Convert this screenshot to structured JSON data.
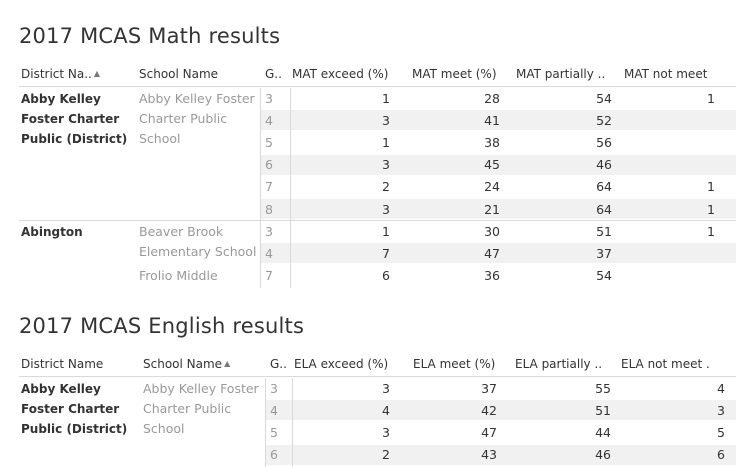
{
  "math": {
    "title": "2017 MCAS Math results",
    "headers": {
      "district": "District Na..",
      "school": "School Name",
      "grade": "G..",
      "exceed": "MAT exceed (%)",
      "meet": "MAT meet (%)",
      "partially": "MAT partially ..",
      "not_meet": "MAT not meet"
    },
    "groups": [
      {
        "district": [
          "Abby Kelley",
          "Foster Charter",
          "Public (District)"
        ],
        "school": [
          "Abby Kelley Foster",
          "Charter Public",
          "School"
        ]
      },
      {
        "district": [
          "Abington"
        ],
        "school": [
          "Beaver Brook",
          "Elementary School"
        ]
      },
      {
        "district": [],
        "school": [
          "Frolio Middle"
        ]
      }
    ],
    "rows": [
      {
        "grade": "3",
        "exceed": "1",
        "meet": "28",
        "partially": "54",
        "not_meet": "1"
      },
      {
        "grade": "4",
        "exceed": "3",
        "meet": "41",
        "partially": "52",
        "not_meet": ""
      },
      {
        "grade": "5",
        "exceed": "1",
        "meet": "38",
        "partially": "56",
        "not_meet": ""
      },
      {
        "grade": "6",
        "exceed": "3",
        "meet": "45",
        "partially": "46",
        "not_meet": ""
      },
      {
        "grade": "7",
        "exceed": "2",
        "meet": "24",
        "partially": "64",
        "not_meet": "1"
      },
      {
        "grade": "8",
        "exceed": "3",
        "meet": "21",
        "partially": "64",
        "not_meet": "1"
      },
      {
        "grade": "3",
        "exceed": "1",
        "meet": "30",
        "partially": "51",
        "not_meet": "1"
      },
      {
        "grade": "4",
        "exceed": "7",
        "meet": "47",
        "partially": "37",
        "not_meet": ""
      },
      {
        "grade": "7",
        "exceed": "6",
        "meet": "36",
        "partially": "54",
        "not_meet": ""
      }
    ]
  },
  "english": {
    "title": "2017 MCAS English results",
    "headers": {
      "district": "District Name",
      "school": "School Name",
      "grade": "G..",
      "exceed": "ELA exceed (%)",
      "meet": "ELA meet (%)",
      "partially": "ELA partially ..",
      "not_meet": "ELA not meet ."
    },
    "groups": [
      {
        "district": [
          "Abby Kelley",
          "Foster Charter",
          "Public (District)"
        ],
        "school": [
          "Abby Kelley Foster",
          "Charter Public",
          "School"
        ]
      }
    ],
    "rows": [
      {
        "grade": "3",
        "exceed": "3",
        "meet": "37",
        "partially": "55",
        "not_meet": "4"
      },
      {
        "grade": "4",
        "exceed": "4",
        "meet": "42",
        "partially": "51",
        "not_meet": "3"
      },
      {
        "grade": "5",
        "exceed": "3",
        "meet": "47",
        "partially": "44",
        "not_meet": "5"
      },
      {
        "grade": "6",
        "exceed": "2",
        "meet": "43",
        "partially": "46",
        "not_meet": "6"
      }
    ]
  },
  "icons": {
    "sort": "sort-az-icon"
  }
}
